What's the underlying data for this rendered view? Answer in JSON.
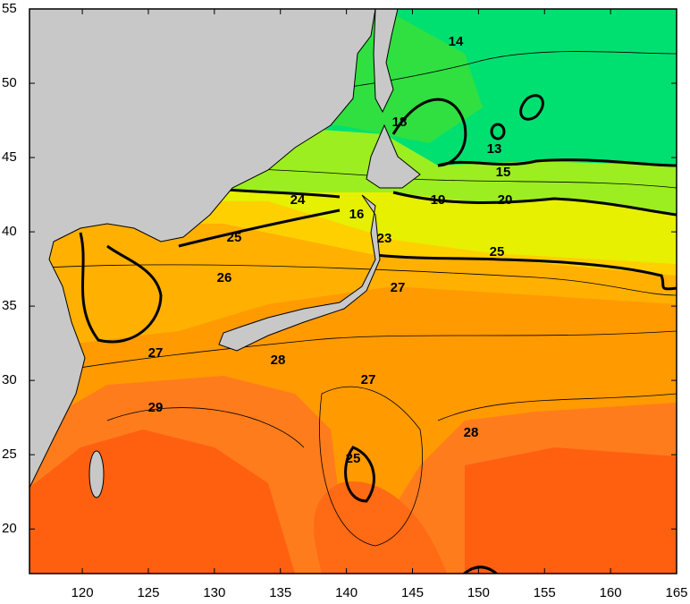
{
  "map": {
    "xlim": [
      116,
      165
    ],
    "ylim": [
      17,
      55
    ],
    "xticks": [
      120,
      125,
      130,
      135,
      140,
      145,
      150,
      155,
      160,
      165
    ],
    "yticks": [
      20,
      25,
      30,
      35,
      40,
      45,
      50,
      55
    ],
    "contour_labels": [
      14,
      18,
      13,
      15,
      19,
      20,
      24,
      25,
      16,
      23,
      25,
      26,
      27,
      27,
      28,
      29,
      27,
      28,
      25
    ]
  }
}
